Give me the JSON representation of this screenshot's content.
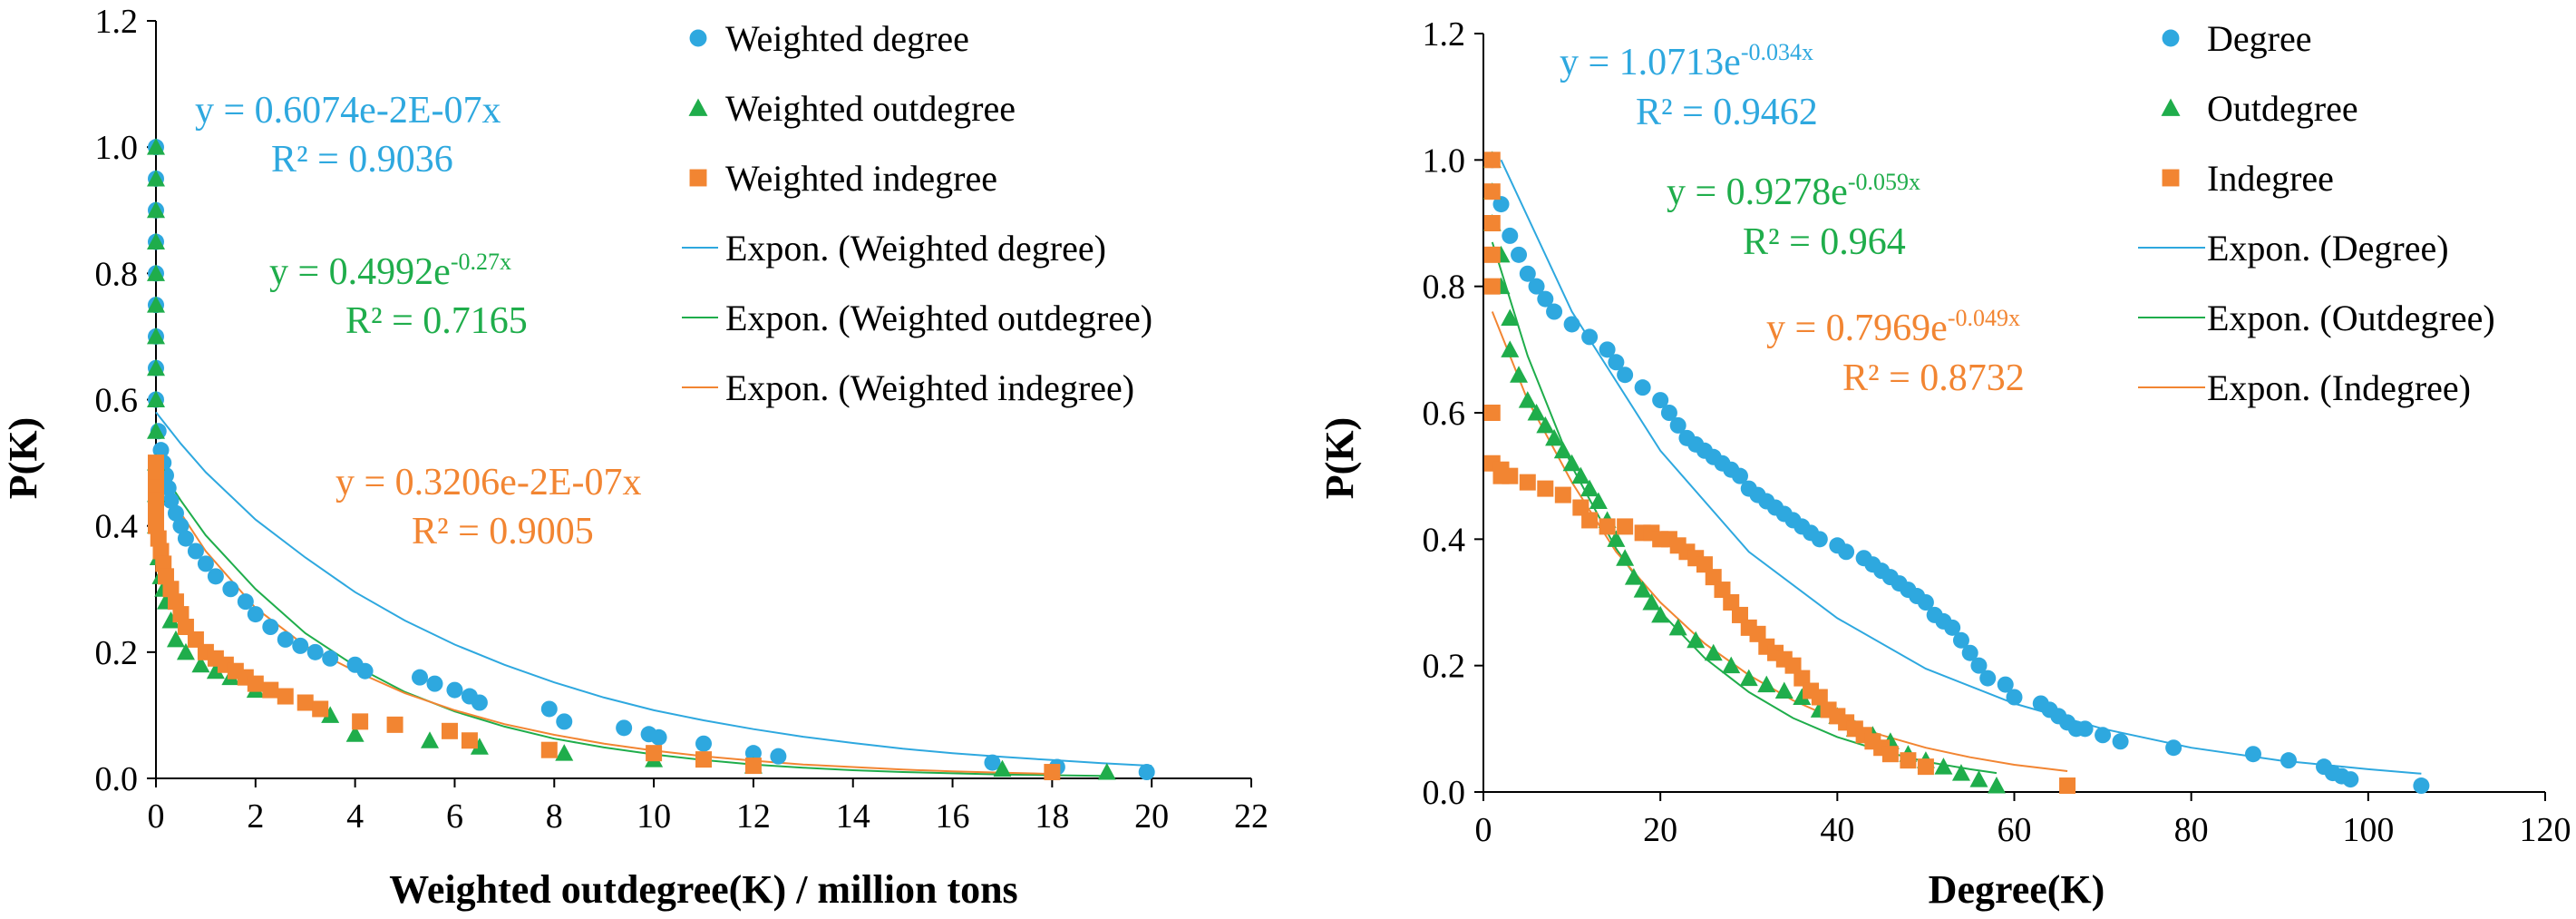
{
  "colors": {
    "blue": "#2ea8df",
    "green": "#1fad4b",
    "orange": "#f28532"
  },
  "chart_data": [
    {
      "type": "scatter",
      "xlabel": "Weighted outdegree(K) / million tons",
      "ylabel": "P(K)",
      "xlim": [
        0,
        22
      ],
      "ylim": [
        0,
        1.2
      ],
      "xticks": [
        "0",
        "2",
        "4",
        "6",
        "8",
        "10",
        "12",
        "14",
        "16",
        "18",
        "20",
        "22"
      ],
      "yticks": [
        "0.0",
        "0.2",
        "0.4",
        "0.6",
        "0.8",
        "1.0",
        "1.2"
      ],
      "legend": [
        {
          "label": "Weighted degree",
          "kind": "circle",
          "color": "blue"
        },
        {
          "label": "Weighted outdegree",
          "kind": "triangle",
          "color": "green"
        },
        {
          "label": "Weighted indegree",
          "kind": "square",
          "color": "orange"
        },
        {
          "label": "Expon. (Weighted degree)",
          "kind": "line",
          "color": "blue"
        },
        {
          "label": "Expon. (Weighted outdegree)",
          "kind": "line",
          "color": "green"
        },
        {
          "label": "Expon. (Weighted indegree)",
          "kind": "line",
          "color": "orange"
        }
      ],
      "annotations": [
        {
          "lines": [
            {
              "main": "y = 0.6074e-2E-07x"
            },
            {
              "main": "R² = 0.9036"
            }
          ],
          "color": "blue"
        },
        {
          "lines": [
            {
              "main": "y = 0.4992e",
              "sup": "-0.27x"
            },
            {
              "main": "R² = 0.7165"
            }
          ],
          "color": "green"
        },
        {
          "lines": [
            {
              "main": "y = 0.3206e-2E-07x"
            },
            {
              "main": "R² = 0.9005"
            }
          ],
          "color": "orange"
        }
      ],
      "series": [
        {
          "name": "Weighted degree",
          "marker": "circle",
          "color": "blue",
          "x": [
            0,
            0,
            0,
            0,
            0,
            0,
            0,
            0,
            0,
            0.05,
            0.1,
            0.15,
            0.2,
            0.25,
            0.3,
            0.4,
            0.5,
            0.6,
            0.8,
            1.0,
            1.2,
            1.5,
            1.8,
            2.0,
            2.3,
            2.6,
            2.9,
            3.2,
            3.5,
            4.0,
            4.2,
            5.3,
            5.6,
            6.0,
            6.3,
            6.5,
            7.9,
            8.2,
            9.4,
            9.9,
            10.1,
            11.0,
            12.0,
            12.5,
            16.8,
            18.1,
            19.9
          ],
          "y": [
            1.0,
            0.95,
            0.9,
            0.85,
            0.8,
            0.75,
            0.7,
            0.65,
            0.6,
            0.55,
            0.52,
            0.5,
            0.48,
            0.46,
            0.44,
            0.42,
            0.4,
            0.38,
            0.36,
            0.34,
            0.32,
            0.3,
            0.28,
            0.26,
            0.24,
            0.22,
            0.21,
            0.2,
            0.19,
            0.18,
            0.17,
            0.16,
            0.15,
            0.14,
            0.13,
            0.12,
            0.11,
            0.09,
            0.08,
            0.07,
            0.065,
            0.055,
            0.04,
            0.035,
            0.025,
            0.018,
            0.01
          ]
        },
        {
          "name": "Weighted outdegree",
          "marker": "triangle",
          "color": "green",
          "x": [
            0,
            0,
            0,
            0,
            0,
            0,
            0,
            0,
            0,
            0,
            0,
            0,
            0,
            0.05,
            0.1,
            0.15,
            0.2,
            0.3,
            0.4,
            0.6,
            0.9,
            1.2,
            1.5,
            2.0,
            3.5,
            4.0,
            5.5,
            6.5,
            8.2,
            10.0,
            12.0,
            17.0,
            19.1
          ],
          "y": [
            1.0,
            0.95,
            0.9,
            0.85,
            0.8,
            0.75,
            0.7,
            0.65,
            0.6,
            0.55,
            0.5,
            0.45,
            0.4,
            0.35,
            0.32,
            0.3,
            0.28,
            0.25,
            0.22,
            0.2,
            0.18,
            0.17,
            0.16,
            0.14,
            0.1,
            0.07,
            0.06,
            0.05,
            0.04,
            0.03,
            0.02,
            0.015,
            0.01
          ]
        },
        {
          "name": "Weighted indegree",
          "marker": "square",
          "color": "orange",
          "x": [
            0,
            0,
            0,
            0,
            0,
            0,
            0.05,
            0.1,
            0.15,
            0.2,
            0.3,
            0.4,
            0.5,
            0.6,
            0.8,
            1.0,
            1.2,
            1.4,
            1.6,
            1.8,
            2.0,
            2.3,
            2.6,
            3.0,
            3.3,
            4.1,
            4.8,
            5.9,
            6.3,
            7.9,
            10.0,
            11.0,
            12.0,
            18.0
          ],
          "y": [
            0.5,
            0.48,
            0.46,
            0.44,
            0.42,
            0.4,
            0.38,
            0.36,
            0.34,
            0.32,
            0.3,
            0.28,
            0.26,
            0.24,
            0.22,
            0.2,
            0.19,
            0.18,
            0.17,
            0.16,
            0.15,
            0.14,
            0.13,
            0.12,
            0.11,
            0.09,
            0.085,
            0.075,
            0.06,
            0.045,
            0.04,
            0.03,
            0.02,
            0.01
          ]
        }
      ],
      "trendlines": [
        {
          "name": "Expon. (Weighted degree)",
          "color": "blue",
          "x": [
            0,
            0.5,
            1,
            2,
            3,
            4,
            5,
            6,
            7,
            8,
            9,
            10,
            11,
            12,
            13,
            14,
            15,
            16,
            17,
            18,
            19,
            20
          ],
          "y": [
            0.58,
            0.53,
            0.485,
            0.41,
            0.35,
            0.295,
            0.25,
            0.212,
            0.18,
            0.152,
            0.128,
            0.108,
            0.092,
            0.078,
            0.066,
            0.056,
            0.047,
            0.04,
            0.034,
            0.029,
            0.024,
            0.02
          ]
        },
        {
          "name": "Expon. (Weighted outdegree)",
          "color": "green",
          "x": [
            0,
            0.5,
            1,
            2,
            3,
            4,
            5,
            6,
            7,
            8,
            9,
            10,
            11,
            12,
            13,
            14,
            15,
            16,
            17,
            18,
            19
          ],
          "y": [
            0.5,
            0.44,
            0.385,
            0.3,
            0.23,
            0.178,
            0.137,
            0.106,
            0.082,
            0.063,
            0.049,
            0.038,
            0.029,
            0.022,
            0.017,
            0.013,
            0.01,
            0.008,
            0.006,
            0.005,
            0.004
          ]
        },
        {
          "name": "Expon. (Weighted indegree)",
          "color": "orange",
          "x": [
            0,
            0.5,
            1,
            2,
            3,
            4,
            5,
            6,
            7,
            8,
            9,
            10,
            11,
            12,
            13,
            14,
            15,
            16,
            17,
            18
          ],
          "y": [
            0.5,
            0.42,
            0.36,
            0.27,
            0.21,
            0.17,
            0.135,
            0.108,
            0.086,
            0.069,
            0.055,
            0.044,
            0.035,
            0.028,
            0.022,
            0.018,
            0.014,
            0.011,
            0.009,
            0.007
          ]
        }
      ]
    },
    {
      "type": "scatter",
      "xlabel": "Degree(K)",
      "ylabel": "P(K)",
      "xlim": [
        0,
        120
      ],
      "ylim": [
        0,
        1.2
      ],
      "xticks": [
        "0",
        "20",
        "40",
        "60",
        "80",
        "100",
        "120"
      ],
      "yticks": [
        "0.0",
        "0.2",
        "0.4",
        "0.6",
        "0.8",
        "1.0",
        "1.2"
      ],
      "legend": [
        {
          "label": "Degree",
          "kind": "circle",
          "color": "blue"
        },
        {
          "label": "Outdegree",
          "kind": "triangle",
          "color": "green"
        },
        {
          "label": "Indegree",
          "kind": "square",
          "color": "orange"
        },
        {
          "label": "Expon. (Degree)",
          "kind": "line",
          "color": "blue"
        },
        {
          "label": "Expon. (Outdegree)",
          "kind": "line",
          "color": "green"
        },
        {
          "label": "Expon. (Indegree)",
          "kind": "line",
          "color": "orange"
        }
      ],
      "annotations": [
        {
          "lines": [
            {
              "main": "y = 1.0713e",
              "sup": "-0.034x"
            },
            {
              "main": "R² = 0.9462"
            }
          ],
          "color": "blue"
        },
        {
          "lines": [
            {
              "main": "y = 0.9278e",
              "sup": "-0.059x"
            },
            {
              "main": "R² = 0.964"
            }
          ],
          "color": "green"
        },
        {
          "lines": [
            {
              "main": "y = 0.7969e",
              "sup": "-0.049x"
            },
            {
              "main": "R² = 0.8732"
            }
          ],
          "color": "orange"
        }
      ],
      "series": [
        {
          "name": "Degree",
          "marker": "circle",
          "color": "blue",
          "x": [
            1,
            2,
            3,
            4,
            5,
            6,
            7,
            8,
            10,
            12,
            14,
            15,
            16,
            18,
            20,
            21,
            22,
            23,
            24,
            25,
            26,
            27,
            28,
            29,
            30,
            31,
            32,
            33,
            34,
            35,
            36,
            37,
            38,
            40,
            41,
            43,
            44,
            45,
            46,
            47,
            48,
            49,
            50,
            51,
            52,
            53,
            54,
            55,
            56,
            57,
            59,
            60,
            63,
            64,
            65,
            66,
            67,
            68,
            70,
            72,
            78,
            87,
            91,
            95,
            96,
            97,
            98,
            106
          ],
          "y": [
            1.0,
            0.93,
            0.88,
            0.85,
            0.82,
            0.8,
            0.78,
            0.76,
            0.74,
            0.72,
            0.7,
            0.68,
            0.66,
            0.64,
            0.62,
            0.6,
            0.58,
            0.56,
            0.55,
            0.54,
            0.53,
            0.52,
            0.51,
            0.5,
            0.48,
            0.47,
            0.46,
            0.45,
            0.44,
            0.43,
            0.42,
            0.41,
            0.4,
            0.39,
            0.38,
            0.37,
            0.36,
            0.35,
            0.34,
            0.33,
            0.32,
            0.31,
            0.3,
            0.28,
            0.27,
            0.26,
            0.24,
            0.22,
            0.2,
            0.18,
            0.17,
            0.15,
            0.14,
            0.13,
            0.12,
            0.11,
            0.1,
            0.1,
            0.09,
            0.08,
            0.07,
            0.06,
            0.05,
            0.04,
            0.03,
            0.025,
            0.02,
            0.01
          ]
        },
        {
          "name": "Outdegree",
          "marker": "triangle",
          "color": "green",
          "x": [
            1,
            1,
            1,
            2,
            2,
            3,
            3,
            4,
            5,
            6,
            7,
            8,
            9,
            10,
            11,
            12,
            13,
            14,
            15,
            16,
            17,
            18,
            19,
            20,
            22,
            24,
            26,
            28,
            30,
            32,
            34,
            36,
            38,
            40,
            42,
            44,
            46,
            48,
            50,
            52,
            54,
            56,
            58
          ],
          "y": [
            1.0,
            0.95,
            0.9,
            0.85,
            0.8,
            0.75,
            0.7,
            0.66,
            0.62,
            0.6,
            0.58,
            0.56,
            0.54,
            0.52,
            0.5,
            0.48,
            0.46,
            0.43,
            0.4,
            0.37,
            0.34,
            0.32,
            0.3,
            0.28,
            0.26,
            0.24,
            0.22,
            0.2,
            0.18,
            0.17,
            0.16,
            0.15,
            0.13,
            0.12,
            0.1,
            0.09,
            0.08,
            0.06,
            0.05,
            0.04,
            0.03,
            0.02,
            0.01
          ]
        },
        {
          "name": "Indegree",
          "marker": "square",
          "color": "orange",
          "x": [
            1,
            1,
            1,
            1,
            1,
            1,
            1,
            2,
            2,
            3,
            5,
            7,
            9,
            11,
            12,
            14,
            16,
            18,
            19,
            20,
            21,
            22,
            23,
            24,
            25,
            26,
            27,
            28,
            29,
            30,
            31,
            32,
            33,
            34,
            35,
            36,
            37,
            38,
            39,
            40,
            41,
            42,
            43,
            44,
            45,
            46,
            48,
            50,
            66
          ],
          "y": [
            1.0,
            0.95,
            0.9,
            0.85,
            0.8,
            0.6,
            0.52,
            0.51,
            0.5,
            0.5,
            0.49,
            0.48,
            0.47,
            0.45,
            0.43,
            0.42,
            0.42,
            0.41,
            0.41,
            0.4,
            0.4,
            0.39,
            0.38,
            0.37,
            0.36,
            0.34,
            0.32,
            0.3,
            0.28,
            0.26,
            0.25,
            0.23,
            0.22,
            0.21,
            0.2,
            0.18,
            0.16,
            0.15,
            0.13,
            0.12,
            0.11,
            0.1,
            0.09,
            0.08,
            0.07,
            0.06,
            0.05,
            0.04,
            0.01
          ]
        }
      ],
      "trendlines": [
        {
          "name": "Expon. (Degree)",
          "color": "blue",
          "x": [
            2,
            10,
            20,
            30,
            40,
            50,
            60,
            70,
            80,
            90,
            100,
            106
          ],
          "y": [
            1.0,
            0.76,
            0.54,
            0.38,
            0.275,
            0.195,
            0.14,
            0.1,
            0.07,
            0.05,
            0.036,
            0.029
          ]
        },
        {
          "name": "Expon. (Outdegree)",
          "color": "green",
          "x": [
            1,
            5,
            10,
            15,
            20,
            25,
            30,
            35,
            40,
            45,
            50,
            55,
            58
          ],
          "y": [
            0.87,
            0.69,
            0.515,
            0.385,
            0.285,
            0.212,
            0.158,
            0.117,
            0.087,
            0.065,
            0.048,
            0.036,
            0.03
          ]
        },
        {
          "name": "Expon. (Indegree)",
          "color": "orange",
          "x": [
            1,
            5,
            10,
            15,
            20,
            25,
            30,
            35,
            40,
            45,
            50,
            55,
            60,
            66
          ],
          "y": [
            0.76,
            0.62,
            0.49,
            0.38,
            0.3,
            0.235,
            0.185,
            0.145,
            0.114,
            0.09,
            0.07,
            0.055,
            0.043,
            0.033
          ]
        }
      ]
    }
  ]
}
